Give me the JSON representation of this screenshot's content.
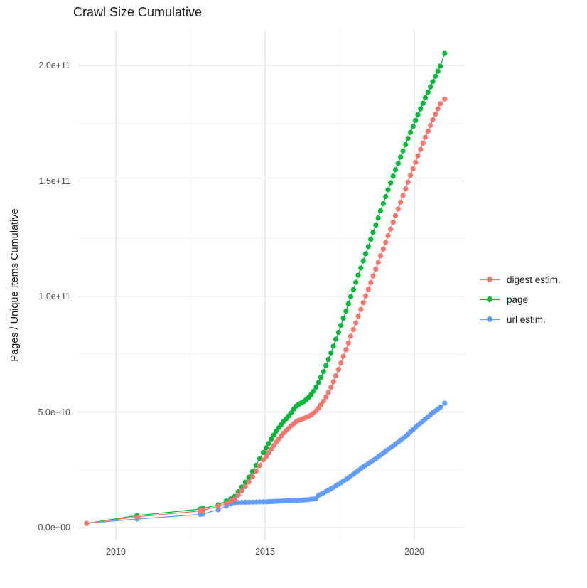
{
  "chart_data": {
    "type": "line",
    "title": "Crawl Size Cumulative",
    "xlabel": "",
    "ylabel": "Pages / Unique Items Cumulative",
    "value_unit": "1e9 (billions of pages / items)",
    "xlim": [
      2008.74,
      2021.76
    ],
    "ylim_e9": [
      -5,
      215
    ],
    "grid": "on",
    "legend_position": "right",
    "x_ticks": [
      {
        "value": 2010,
        "label": "2010"
      },
      {
        "value": 2015,
        "label": "2015"
      },
      {
        "value": 2020,
        "label": "2020"
      }
    ],
    "x_minor_ticks": [
      2012.5,
      2017.5
    ],
    "y_ticks": [
      {
        "value_e9": 0,
        "label": "0.0e+00"
      },
      {
        "value_e9": 50,
        "label": "5.0e+10"
      },
      {
        "value_e9": 100,
        "label": "1.0e+11"
      },
      {
        "value_e9": 150,
        "label": "1.5e+11"
      },
      {
        "value_e9": 200,
        "label": "2.0e+11"
      }
    ],
    "y_minor_ticks_e9": [
      25,
      75,
      125,
      175
    ],
    "series": [
      {
        "name": "digest estim.",
        "color": "#F8766D",
        "points_year_e9": [
          [
            2009.02,
            1.8
          ],
          [
            2010.71,
            4.6
          ],
          [
            2012.83,
            7.2
          ],
          [
            2012.92,
            7.5
          ],
          [
            2013.43,
            9.2
          ],
          [
            2013.7,
            10.6
          ],
          [
            2013.85,
            11.5
          ],
          [
            2013.98,
            12.3
          ],
          [
            2014.1,
            14.0
          ],
          [
            2014.22,
            15.8
          ],
          [
            2014.34,
            17.7
          ],
          [
            2014.46,
            19.7
          ],
          [
            2014.58,
            22.0
          ],
          [
            2014.7,
            24.4
          ],
          [
            2014.82,
            26.9
          ],
          [
            2014.94,
            29.3
          ],
          [
            2015.04,
            30.8
          ],
          [
            2015.12,
            32.4
          ],
          [
            2015.21,
            34.0
          ],
          [
            2015.29,
            35.5
          ],
          [
            2015.37,
            37.0
          ],
          [
            2015.46,
            38.4
          ],
          [
            2015.54,
            39.7
          ],
          [
            2015.62,
            40.9
          ],
          [
            2015.71,
            42.0
          ],
          [
            2015.79,
            43.0
          ],
          [
            2015.87,
            44.0
          ],
          [
            2015.96,
            45.0
          ],
          [
            2016.04,
            45.8
          ],
          [
            2016.12,
            46.4
          ],
          [
            2016.21,
            46.8
          ],
          [
            2016.29,
            47.2
          ],
          [
            2016.37,
            47.6
          ],
          [
            2016.46,
            48.1
          ],
          [
            2016.54,
            48.7
          ],
          [
            2016.62,
            49.5
          ],
          [
            2016.71,
            50.5
          ],
          [
            2016.79,
            51.7
          ],
          [
            2016.87,
            53.1
          ],
          [
            2016.96,
            54.7
          ],
          [
            2017.04,
            56.5
          ],
          [
            2017.12,
            58.5
          ],
          [
            2017.21,
            60.7
          ],
          [
            2017.29,
            63.1
          ],
          [
            2017.37,
            65.7
          ],
          [
            2017.46,
            68.4
          ],
          [
            2017.54,
            71.2
          ],
          [
            2017.62,
            74.1
          ],
          [
            2017.71,
            77.0
          ],
          [
            2017.79,
            79.9
          ],
          [
            2017.87,
            82.8
          ],
          [
            2017.96,
            85.7
          ],
          [
            2018.04,
            88.6
          ],
          [
            2018.12,
            91.5
          ],
          [
            2018.21,
            94.4
          ],
          [
            2018.29,
            97.3
          ],
          [
            2018.37,
            100.2
          ],
          [
            2018.46,
            103.1
          ],
          [
            2018.54,
            106.0
          ],
          [
            2018.62,
            108.9
          ],
          [
            2018.71,
            111.8
          ],
          [
            2018.79,
            114.7
          ],
          [
            2018.87,
            117.6
          ],
          [
            2018.96,
            120.5
          ],
          [
            2019.04,
            123.4
          ],
          [
            2019.12,
            126.3
          ],
          [
            2019.21,
            129.2
          ],
          [
            2019.29,
            132.1
          ],
          [
            2019.37,
            135.0
          ],
          [
            2019.46,
            137.9
          ],
          [
            2019.54,
            140.8
          ],
          [
            2019.62,
            143.7
          ],
          [
            2019.71,
            146.6
          ],
          [
            2019.79,
            149.5
          ],
          [
            2019.87,
            152.4
          ],
          [
            2019.96,
            155.3
          ],
          [
            2020.04,
            158.1
          ],
          [
            2020.12,
            160.9
          ],
          [
            2020.21,
            163.6
          ],
          [
            2020.29,
            166.3
          ],
          [
            2020.37,
            168.9
          ],
          [
            2020.46,
            171.5
          ],
          [
            2020.54,
            174.0
          ],
          [
            2020.62,
            176.5
          ],
          [
            2020.71,
            178.9
          ],
          [
            2020.79,
            181.2
          ],
          [
            2020.87,
            183.4
          ],
          [
            2021.02,
            185.5
          ]
        ]
      },
      {
        "name": "page",
        "color": "#00BA38",
        "points_year_e9": [
          [
            2009.02,
            1.8
          ],
          [
            2010.71,
            5.2
          ],
          [
            2012.83,
            8.0
          ],
          [
            2012.92,
            8.3
          ],
          [
            2013.43,
            9.8
          ],
          [
            2013.7,
            11.5
          ],
          [
            2013.85,
            12.5
          ],
          [
            2013.98,
            13.5
          ],
          [
            2014.1,
            15.5
          ],
          [
            2014.22,
            17.5
          ],
          [
            2014.34,
            19.6
          ],
          [
            2014.46,
            21.8
          ],
          [
            2014.58,
            24.3
          ],
          [
            2014.7,
            27.0
          ],
          [
            2014.82,
            29.8
          ],
          [
            2014.94,
            32.5
          ],
          [
            2015.04,
            34.5
          ],
          [
            2015.12,
            36.4
          ],
          [
            2015.21,
            38.3
          ],
          [
            2015.29,
            40.0
          ],
          [
            2015.37,
            41.7
          ],
          [
            2015.46,
            43.2
          ],
          [
            2015.54,
            44.6
          ],
          [
            2015.62,
            45.9
          ],
          [
            2015.71,
            47.1
          ],
          [
            2015.79,
            48.3
          ],
          [
            2015.87,
            49.6
          ],
          [
            2015.96,
            51.3
          ],
          [
            2016.04,
            52.5
          ],
          [
            2016.12,
            53.3
          ],
          [
            2016.21,
            53.9
          ],
          [
            2016.29,
            54.5
          ],
          [
            2016.37,
            55.3
          ],
          [
            2016.46,
            56.3
          ],
          [
            2016.54,
            57.5
          ],
          [
            2016.62,
            59.0
          ],
          [
            2016.71,
            60.8
          ],
          [
            2016.79,
            62.8
          ],
          [
            2016.87,
            65.0
          ],
          [
            2016.96,
            67.5
          ],
          [
            2017.04,
            70.1
          ],
          [
            2017.12,
            72.8
          ],
          [
            2017.21,
            75.6
          ],
          [
            2017.29,
            78.5
          ],
          [
            2017.37,
            81.5
          ],
          [
            2017.46,
            84.5
          ],
          [
            2017.54,
            87.5
          ],
          [
            2017.62,
            90.6
          ],
          [
            2017.71,
            93.7
          ],
          [
            2017.79,
            96.8
          ],
          [
            2017.87,
            99.9
          ],
          [
            2017.96,
            103.0
          ],
          [
            2018.04,
            106.1
          ],
          [
            2018.12,
            109.2
          ],
          [
            2018.21,
            112.3
          ],
          [
            2018.29,
            115.4
          ],
          [
            2018.37,
            118.5
          ],
          [
            2018.46,
            121.6
          ],
          [
            2018.54,
            124.7
          ],
          [
            2018.62,
            127.8
          ],
          [
            2018.71,
            130.9
          ],
          [
            2018.79,
            134.0
          ],
          [
            2018.87,
            137.1
          ],
          [
            2018.96,
            140.2
          ],
          [
            2019.04,
            143.2
          ],
          [
            2019.12,
            146.2
          ],
          [
            2019.21,
            149.2
          ],
          [
            2019.29,
            152.1
          ],
          [
            2019.37,
            154.9
          ],
          [
            2019.46,
            157.6
          ],
          [
            2019.54,
            160.3
          ],
          [
            2019.62,
            163.0
          ],
          [
            2019.71,
            165.7
          ],
          [
            2019.79,
            168.4
          ],
          [
            2019.87,
            171.0
          ],
          [
            2019.96,
            173.6
          ],
          [
            2020.04,
            176.2
          ],
          [
            2020.12,
            178.7
          ],
          [
            2020.21,
            181.2
          ],
          [
            2020.29,
            183.6
          ],
          [
            2020.37,
            186.0
          ],
          [
            2020.46,
            188.4
          ],
          [
            2020.54,
            190.7
          ],
          [
            2020.62,
            193.0
          ],
          [
            2020.71,
            195.3
          ],
          [
            2020.79,
            197.5
          ],
          [
            2020.87,
            199.7
          ],
          [
            2021.02,
            205.2
          ]
        ]
      },
      {
        "name": "url estim.",
        "color": "#619CFF",
        "points_year_e9": [
          [
            2009.02,
            1.8
          ],
          [
            2010.71,
            3.7
          ],
          [
            2012.83,
            5.7
          ],
          [
            2012.92,
            5.9
          ],
          [
            2013.43,
            7.7
          ],
          [
            2013.7,
            9.3
          ],
          [
            2013.85,
            10.2
          ],
          [
            2013.98,
            10.8
          ],
          [
            2014.1,
            10.85
          ],
          [
            2014.22,
            10.9
          ],
          [
            2014.34,
            10.95
          ],
          [
            2014.46,
            11.0
          ],
          [
            2014.58,
            11.0
          ],
          [
            2014.7,
            11.05
          ],
          [
            2014.82,
            11.1
          ],
          [
            2014.94,
            11.1
          ],
          [
            2015.04,
            11.15
          ],
          [
            2015.12,
            11.2
          ],
          [
            2015.21,
            11.25
          ],
          [
            2015.29,
            11.3
          ],
          [
            2015.37,
            11.35
          ],
          [
            2015.46,
            11.4
          ],
          [
            2015.54,
            11.45
          ],
          [
            2015.62,
            11.5
          ],
          [
            2015.71,
            11.55
          ],
          [
            2015.79,
            11.6
          ],
          [
            2015.87,
            11.65
          ],
          [
            2015.96,
            11.7
          ],
          [
            2016.04,
            11.75
          ],
          [
            2016.12,
            11.8
          ],
          [
            2016.21,
            11.85
          ],
          [
            2016.29,
            11.9
          ],
          [
            2016.37,
            12.0
          ],
          [
            2016.46,
            12.1
          ],
          [
            2016.54,
            12.25
          ],
          [
            2016.62,
            12.4
          ],
          [
            2016.71,
            12.6
          ],
          [
            2016.79,
            13.9
          ],
          [
            2016.87,
            14.4
          ],
          [
            2016.96,
            15.0
          ],
          [
            2017.04,
            15.6
          ],
          [
            2017.12,
            16.2
          ],
          [
            2017.21,
            16.8
          ],
          [
            2017.29,
            17.4
          ],
          [
            2017.37,
            18.0
          ],
          [
            2017.46,
            18.7
          ],
          [
            2017.54,
            19.4
          ],
          [
            2017.62,
            20.1
          ],
          [
            2017.71,
            20.8
          ],
          [
            2017.79,
            21.5
          ],
          [
            2017.87,
            22.3
          ],
          [
            2017.96,
            23.1
          ],
          [
            2018.04,
            23.9
          ],
          [
            2018.12,
            24.7
          ],
          [
            2018.21,
            25.5
          ],
          [
            2018.29,
            26.3
          ],
          [
            2018.37,
            27.0
          ],
          [
            2018.46,
            27.7
          ],
          [
            2018.54,
            28.4
          ],
          [
            2018.62,
            29.1
          ],
          [
            2018.71,
            29.8
          ],
          [
            2018.79,
            30.6
          ],
          [
            2018.87,
            31.4
          ],
          [
            2018.96,
            32.2
          ],
          [
            2019.04,
            33.0
          ],
          [
            2019.12,
            33.8
          ],
          [
            2019.21,
            34.6
          ],
          [
            2019.29,
            35.4
          ],
          [
            2019.37,
            36.2
          ],
          [
            2019.46,
            37.0
          ],
          [
            2019.54,
            37.8
          ],
          [
            2019.62,
            38.6
          ],
          [
            2019.71,
            39.5
          ],
          [
            2019.79,
            40.4
          ],
          [
            2019.87,
            41.4
          ],
          [
            2019.96,
            42.4
          ],
          [
            2020.04,
            43.4
          ],
          [
            2020.12,
            44.3
          ],
          [
            2020.21,
            45.2
          ],
          [
            2020.29,
            46.1
          ],
          [
            2020.37,
            47.0
          ],
          [
            2020.46,
            47.9
          ],
          [
            2020.54,
            48.8
          ],
          [
            2020.62,
            49.7
          ],
          [
            2020.71,
            50.5
          ],
          [
            2020.79,
            51.3
          ],
          [
            2020.87,
            52.1
          ],
          [
            2021.02,
            53.8
          ]
        ]
      }
    ]
  }
}
